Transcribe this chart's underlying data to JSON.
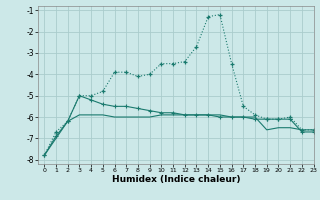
{
  "xlabel": "Humidex (Indice chaleur)",
  "background_color": "#cce8e8",
  "grid_color": "#aacccc",
  "line_color": "#1a7a6e",
  "xlim": [
    -0.5,
    23
  ],
  "ylim": [
    -8.2,
    -0.8
  ],
  "xticks": [
    0,
    1,
    2,
    3,
    4,
    5,
    6,
    7,
    8,
    9,
    10,
    11,
    12,
    13,
    14,
    15,
    16,
    17,
    18,
    19,
    20,
    21,
    22,
    23
  ],
  "yticks": [
    -8,
    -7,
    -6,
    -5,
    -4,
    -3,
    -2,
    -1
  ],
  "series1_x": [
    0,
    1,
    2,
    3,
    4,
    5,
    6,
    7,
    8,
    9,
    10,
    11,
    12,
    13,
    14,
    15,
    16,
    17,
    18,
    19,
    20,
    21,
    22,
    23
  ],
  "series1_y": [
    -7.8,
    -6.7,
    -6.2,
    -5.0,
    -5.0,
    -4.8,
    -3.9,
    -3.9,
    -4.1,
    -4.0,
    -3.5,
    -3.5,
    -3.4,
    -2.7,
    -1.3,
    -1.2,
    -3.5,
    -5.5,
    -5.9,
    -6.1,
    -6.1,
    -6.0,
    -6.6,
    -6.6
  ],
  "series2_x": [
    0,
    1,
    2,
    3,
    4,
    5,
    6,
    7,
    8,
    9,
    10,
    11,
    12,
    13,
    14,
    15,
    16,
    17,
    18,
    19,
    20,
    21,
    22,
    23
  ],
  "series2_y": [
    -7.8,
    -6.9,
    -6.2,
    -5.0,
    -5.2,
    -5.4,
    -5.5,
    -5.5,
    -5.6,
    -5.7,
    -5.8,
    -5.8,
    -5.9,
    -5.9,
    -5.9,
    -6.0,
    -6.0,
    -6.0,
    -6.1,
    -6.1,
    -6.1,
    -6.1,
    -6.7,
    -6.7
  ],
  "series3_x": [
    0,
    1,
    2,
    3,
    4,
    5,
    6,
    7,
    8,
    9,
    10,
    11,
    12,
    13,
    14,
    15,
    16,
    17,
    18,
    19,
    20,
    21,
    22,
    23
  ],
  "series3_y": [
    -7.8,
    -7.0,
    -6.2,
    -5.9,
    -5.9,
    -5.9,
    -6.0,
    -6.0,
    -6.0,
    -6.0,
    -5.9,
    -5.9,
    -5.9,
    -5.9,
    -5.9,
    -5.9,
    -6.0,
    -6.0,
    -6.0,
    -6.6,
    -6.5,
    -6.5,
    -6.6,
    -6.6
  ]
}
